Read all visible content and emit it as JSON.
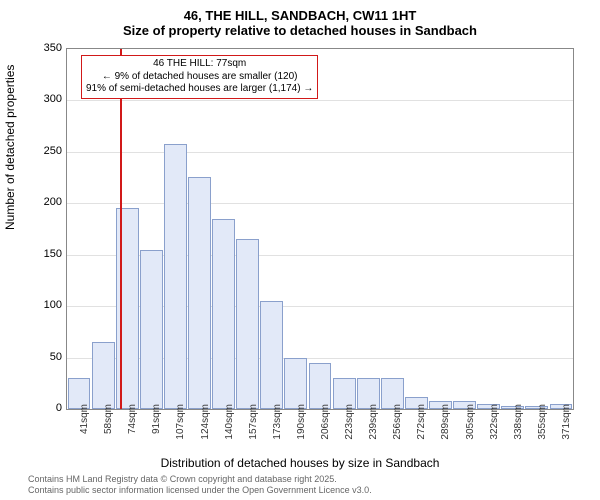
{
  "title": {
    "line1": "46, THE HILL, SANDBACH, CW11 1HT",
    "line2": "Size of property relative to detached houses in Sandbach"
  },
  "chart": {
    "type": "bar",
    "ylabel": "Number of detached properties",
    "xlabel": "Distribution of detached houses by size in Sandbach",
    "ylim": [
      0,
      350
    ],
    "ytick_step": 50,
    "bar_fill": "#e2e9f8",
    "bar_border": "#8aa0cc",
    "grid_color": "#888888",
    "background_color": "#ffffff",
    "categories": [
      "41sqm",
      "58sqm",
      "74sqm",
      "91sqm",
      "107sqm",
      "124sqm",
      "140sqm",
      "157sqm",
      "173sqm",
      "190sqm",
      "206sqm",
      "223sqm",
      "239sqm",
      "256sqm",
      "272sqm",
      "289sqm",
      "305sqm",
      "322sqm",
      "338sqm",
      "355sqm",
      "371sqm"
    ],
    "values": [
      30,
      65,
      195,
      155,
      258,
      226,
      185,
      165,
      105,
      50,
      45,
      30,
      30,
      30,
      12,
      8,
      8,
      5,
      3,
      3,
      5
    ],
    "marker": {
      "at_category_index": 2,
      "color": "#d11919",
      "label_line1": "46 THE HILL: 77sqm",
      "label_line2": "← 9% of detached houses are smaller (120)",
      "label_line3": "91% of semi-detached houses are larger (1,174) →"
    }
  },
  "attribution": {
    "line1": "Contains HM Land Registry data © Crown copyright and database right 2025.",
    "line2": "Contains public sector information licensed under the Open Government Licence v3.0."
  },
  "fonts": {
    "title_size": 13,
    "axis_label_size": 12,
    "tick_size": 11,
    "callout_size": 10,
    "attrib_size": 9
  }
}
